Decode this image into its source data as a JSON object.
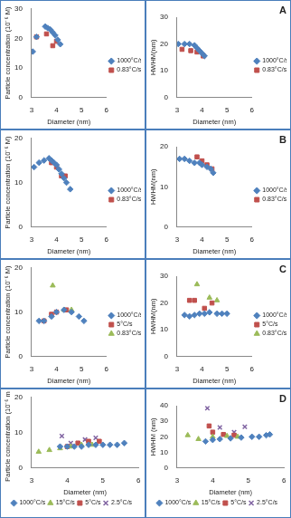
{
  "chart_data": [
    {
      "type": "scatter",
      "x_label": "Diameter (nm)",
      "y_label": "Particle concentration (10⁻⁶ M)",
      "xlim": [
        3,
        6
      ],
      "xticks": [
        3,
        4,
        5,
        6
      ],
      "ylim": [
        0,
        30
      ],
      "yticks": [
        0,
        10,
        20,
        30
      ],
      "grid": false,
      "legend": "right",
      "series": [
        {
          "name": "1000°C/s",
          "color": "#4f81bd",
          "marker": "diamond",
          "x": [
            3.05,
            3.2,
            3.55,
            3.65,
            3.75,
            3.85,
            3.95,
            4.05,
            4.15
          ],
          "values": [
            15.5,
            20.5,
            24,
            23.5,
            23,
            22,
            21,
            19.5,
            18
          ]
        },
        {
          "name": "0.83°C/s",
          "color": "#c0504d",
          "marker": "square",
          "x": [
            3.2,
            3.6,
            3.85,
            4.0
          ],
          "values": [
            20.5,
            21.5,
            17.5,
            19
          ]
        }
      ]
    },
    {
      "type": "scatter",
      "title": "A",
      "x_label": "Diameter (nm)",
      "y_label": "HWHM(nm)",
      "xlim": [
        3,
        6
      ],
      "xticks": [
        3,
        4,
        5,
        6
      ],
      "ylim": [
        0,
        30
      ],
      "yticks": [
        0,
        10,
        20,
        30
      ],
      "grid": false,
      "legend": "right",
      "series": [
        {
          "name": "1000°C/s",
          "color": "#4f81bd",
          "marker": "diamond",
          "x": [
            3.05,
            3.3,
            3.5,
            3.7,
            3.8,
            3.9,
            4.0,
            4.1
          ],
          "values": [
            20,
            20,
            20,
            19.5,
            18.5,
            17.5,
            16.5,
            15.5
          ]
        },
        {
          "name": "0.83°C/s",
          "color": "#c0504d",
          "marker": "square",
          "x": [
            3.2,
            3.55,
            3.8,
            4.05
          ],
          "values": [
            18,
            17.5,
            17,
            15.5
          ]
        }
      ]
    },
    {
      "type": "scatter",
      "x_label": "Diameter (nm)",
      "y_label": "Particle concentration (10⁻⁶ M)",
      "xlim": [
        3,
        6
      ],
      "xticks": [
        3,
        4,
        5,
        6
      ],
      "ylim": [
        0,
        20
      ],
      "yticks": [
        0,
        10,
        20
      ],
      "grid": false,
      "legend": "right",
      "series": [
        {
          "name": "1000°C/s",
          "color": "#4f81bd",
          "marker": "diamond",
          "x": [
            3.1,
            3.3,
            3.5,
            3.7,
            3.8,
            3.9,
            4.0,
            4.1,
            4.2,
            4.3,
            4.4,
            4.55
          ],
          "values": [
            13.5,
            14.5,
            15,
            15.5,
            15,
            14.5,
            14,
            13,
            12,
            11,
            10,
            8.5
          ]
        },
        {
          "name": "0.83°C/s",
          "color": "#c0504d",
          "marker": "square",
          "x": [
            3.8,
            4.0,
            4.2,
            4.35
          ],
          "values": [
            14.5,
            13.5,
            11.5,
            11.5
          ]
        }
      ]
    },
    {
      "type": "scatter",
      "title": "B",
      "x_label": "Diameter (nm)",
      "y_label": "HWHM(nm)",
      "xlim": [
        3,
        6
      ],
      "xticks": [
        3,
        4,
        5,
        6
      ],
      "ylim": [
        0,
        20
      ],
      "yticks": [
        0,
        10,
        20
      ],
      "grid": false,
      "legend": "right",
      "series": [
        {
          "name": "1000°C/s",
          "color": "#4f81bd",
          "marker": "diamond",
          "x": [
            3.1,
            3.3,
            3.5,
            3.7,
            3.9,
            4.0,
            4.2,
            4.35,
            4.45
          ],
          "values": [
            17,
            17,
            16.5,
            16,
            16,
            15.5,
            15,
            14.5,
            13.5
          ]
        },
        {
          "name": "0.83°C/s",
          "color": "#c0504d",
          "marker": "square",
          "x": [
            3.8,
            4.0,
            4.2,
            4.4
          ],
          "values": [
            17.5,
            16.5,
            15.5,
            14.5
          ]
        }
      ]
    },
    {
      "type": "scatter",
      "x_label": "Diameter (nm)",
      "y_label": "Particle concentration (10⁻⁶ M)",
      "xlim": [
        3,
        6
      ],
      "xticks": [
        3,
        4,
        5,
        6
      ],
      "ylim": [
        0,
        20
      ],
      "yticks": [
        0,
        10,
        20
      ],
      "grid": false,
      "legend": "right",
      "series": [
        {
          "name": "1000°C/s",
          "color": "#4f81bd",
          "marker": "diamond",
          "x": [
            3.3,
            3.5,
            3.8,
            4.0,
            4.3,
            4.6,
            4.9,
            5.1
          ],
          "values": [
            8,
            8,
            9,
            10,
            10.5,
            10,
            9,
            8
          ]
        },
        {
          "name": "5°C/s",
          "color": "#c0504d",
          "marker": "square",
          "x": [
            3.5,
            3.8,
            4.0,
            4.4
          ],
          "values": [
            8,
            9.5,
            10,
            10.5
          ]
        },
        {
          "name": "0.83°C/s",
          "color": "#9bbb59",
          "marker": "triangle",
          "x": [
            3.85,
            4.3,
            4.6
          ],
          "values": [
            16,
            10.5,
            10.5
          ]
        }
      ]
    },
    {
      "type": "scatter",
      "title": "C",
      "x_label": "Diameter (nm)",
      "y_label": "HWHM(nm)",
      "xlim": [
        3,
        6
      ],
      "xticks": [
        3,
        4,
        5,
        6
      ],
      "ylim": [
        0,
        30
      ],
      "yticks": [
        0,
        10,
        20,
        30
      ],
      "grid": false,
      "legend": "right",
      "series": [
        {
          "name": "1000°C/s",
          "color": "#4f81bd",
          "marker": "diamond",
          "x": [
            3.3,
            3.5,
            3.7,
            3.9,
            4.1,
            4.3,
            4.6,
            4.8,
            5.0
          ],
          "values": [
            15.5,
            15,
            15.5,
            16,
            16,
            16.5,
            16,
            16,
            16
          ]
        },
        {
          "name": "5°C/s",
          "color": "#c0504d",
          "marker": "square",
          "x": [
            3.5,
            3.7,
            4.1,
            4.4
          ],
          "values": [
            21,
            21,
            18,
            20
          ]
        },
        {
          "name": "0.83°C/s",
          "color": "#9bbb59",
          "marker": "triangle",
          "x": [
            3.8,
            4.3,
            4.6
          ],
          "values": [
            27,
            22,
            21
          ]
        }
      ]
    },
    {
      "type": "scatter",
      "x_label": "Diameter (nm)",
      "y_label": "Particle concentration (10⁻⁶ mM)",
      "xlim": [
        3,
        6
      ],
      "xticks": [
        3,
        4,
        5,
        6
      ],
      "ylim": [
        0,
        20
      ],
      "yticks": [
        0,
        10,
        20
      ],
      "grid": false,
      "legend": "bottom",
      "series": [
        {
          "name": "1000°C/s",
          "color": "#4f81bd",
          "marker": "diamond",
          "x": [
            3.8,
            4.0,
            4.2,
            4.4,
            4.6,
            4.8,
            5.0,
            5.2,
            5.4,
            5.6
          ],
          "values": [
            6,
            6,
            6,
            6,
            6.5,
            6.5,
            6.5,
            6.5,
            6.5,
            7
          ]
        },
        {
          "name": "15°C/s",
          "color": "#9bbb59",
          "marker": "triangle",
          "x": [
            3.2,
            3.5,
            3.8,
            4.1,
            4.4,
            4.7
          ],
          "values": [
            4.5,
            5,
            5.5,
            6,
            6.5,
            6.5
          ]
        },
        {
          "name": "5°C/s",
          "color": "#c0504d",
          "marker": "square",
          "x": [
            4.0,
            4.3,
            4.6,
            4.9
          ],
          "values": [
            6,
            7,
            7.5,
            7.5
          ]
        },
        {
          "name": "2.5°C/s",
          "color": "#8064a2",
          "marker": "cross",
          "x": [
            3.85,
            4.1,
            4.5,
            4.8
          ],
          "values": [
            9,
            7,
            8,
            8.5
          ]
        }
      ]
    },
    {
      "type": "scatter",
      "title": "D",
      "x_label": "Diameter (nm)",
      "y_label": "HWHM (nm)",
      "xlim": [
        3,
        6
      ],
      "xticks": [
        3,
        4,
        5,
        6
      ],
      "ylim": [
        0,
        40
      ],
      "yticks": [
        0,
        10,
        20,
        30,
        40
      ],
      "grid": false,
      "legend": "bottom",
      "series": [
        {
          "name": "1000°C/s",
          "color": "#4f81bd",
          "marker": "diamond",
          "x": [
            3.8,
            4.0,
            4.2,
            4.5,
            4.8,
            5.1,
            5.3,
            5.5,
            5.6
          ],
          "values": [
            17,
            18,
            18.5,
            19,
            19.5,
            20,
            20,
            21,
            21.5
          ]
        },
        {
          "name": "15°C/s",
          "color": "#9bbb59",
          "marker": "triangle",
          "x": [
            3.3,
            3.6,
            4.0,
            4.4,
            4.7
          ],
          "values": [
            21,
            18.5,
            20,
            20.5,
            20
          ]
        },
        {
          "name": "5°C/s",
          "color": "#c0504d",
          "marker": "square",
          "x": [
            3.9,
            4.0,
            4.3,
            4.6
          ],
          "values": [
            27,
            23,
            21.5,
            21
          ]
        },
        {
          "name": "2.5°C/s",
          "color": "#8064a2",
          "marker": "cross",
          "x": [
            3.85,
            4.2,
            4.6,
            4.9
          ],
          "values": [
            38.5,
            26,
            23,
            26.5
          ]
        }
      ]
    }
  ]
}
